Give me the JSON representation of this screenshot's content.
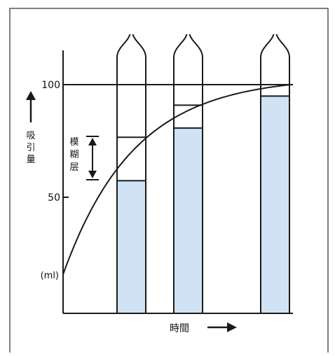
{
  "y_axis": {
    "label_chars": [
      "吸",
      "引",
      "量"
    ],
    "tick_100": "100",
    "tick_50": "50",
    "unit": "(ml)"
  },
  "x_axis": {
    "label": "時間"
  },
  "layer_label_chars": [
    "模",
    "糊",
    "层"
  ],
  "colors": {
    "liquid": "#cfe3f4",
    "line": "#1a1a1a",
    "frame": "#555555"
  },
  "tubes": [
    {
      "name": "tube-1",
      "liquid_ml": 58,
      "layer_top_ml": 77
    },
    {
      "name": "tube-2",
      "liquid_ml": 81,
      "layer_top_ml": 91
    },
    {
      "name": "tube-3",
      "liquid_ml": 95,
      "layer_top_ml": null
    }
  ],
  "curve": {
    "start_ml": 17,
    "end_ml": 100
  }
}
